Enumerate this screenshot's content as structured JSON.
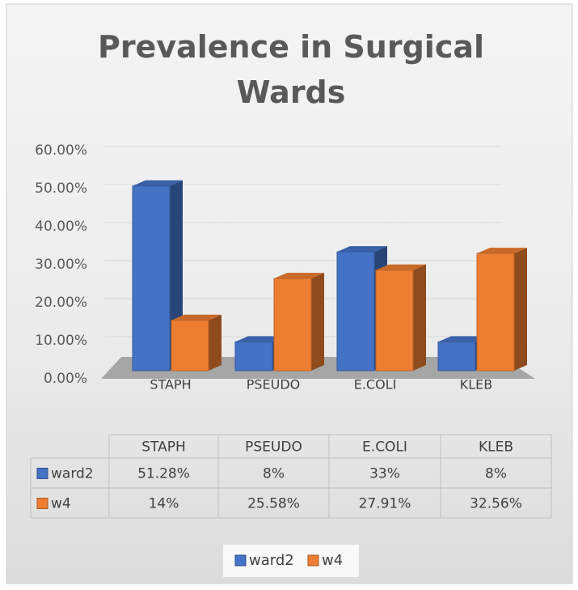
{
  "chart_data": {
    "type": "bar3d",
    "title": "Prevalence in Surgical Wards",
    "categories": [
      "STAPH",
      "PSEUDO",
      "E.COLI",
      "KLEB"
    ],
    "series": [
      {
        "name": "ward2",
        "color": "#4472c4",
        "values": [
          51.28,
          8,
          33,
          8
        ],
        "value_labels": [
          "51.28%",
          "8%",
          "33%",
          "8%"
        ]
      },
      {
        "name": "w4",
        "color": "#ed7d31",
        "values": [
          14,
          25.58,
          27.91,
          32.56
        ],
        "value_labels": [
          "14%",
          "25.58%",
          "27.91%",
          "32.56%"
        ]
      }
    ],
    "ylim": [
      0,
      60
    ],
    "yticks": [
      {
        "value": 0,
        "label": "0.00%"
      },
      {
        "value": 10,
        "label": "10.00%"
      },
      {
        "value": 20,
        "label": "20.00%"
      },
      {
        "value": 30,
        "label": "30.00%"
      },
      {
        "value": 40,
        "label": "40.00%"
      },
      {
        "value": 50,
        "label": "50.00%"
      },
      {
        "value": 60,
        "label": "60.00%"
      }
    ],
    "grid": true,
    "data_table": true,
    "legend": "bottom"
  }
}
